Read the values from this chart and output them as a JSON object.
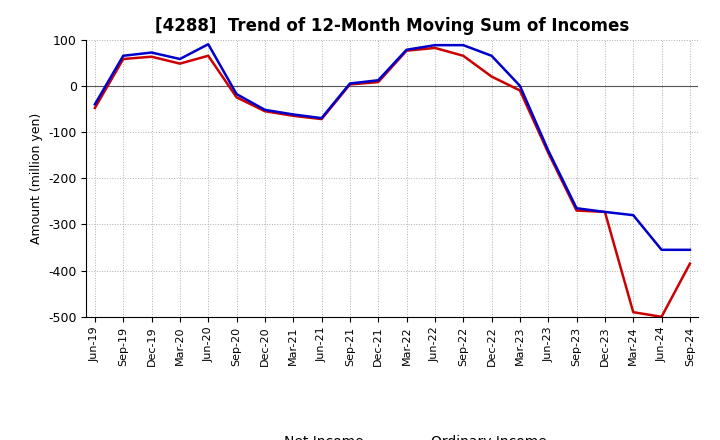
{
  "title": "[4288]  Trend of 12-Month Moving Sum of Incomes",
  "ylabel": "Amount (million yen)",
  "x_labels": [
    "Jun-19",
    "Sep-19",
    "Dec-19",
    "Mar-20",
    "Jun-20",
    "Sep-20",
    "Dec-20",
    "Mar-21",
    "Jun-21",
    "Sep-21",
    "Dec-21",
    "Mar-22",
    "Jun-22",
    "Sep-22",
    "Dec-22",
    "Mar-23",
    "Jun-23",
    "Sep-23",
    "Dec-23",
    "Mar-24",
    "Jun-24",
    "Sep-24"
  ],
  "ordinary_income": [
    -40,
    65,
    72,
    58,
    90,
    -18,
    -52,
    -62,
    -70,
    5,
    12,
    78,
    88,
    88,
    65,
    0,
    -140,
    -265,
    -273,
    -280,
    -355,
    -355
  ],
  "net_income": [
    -48,
    58,
    63,
    48,
    65,
    -25,
    -55,
    -65,
    -72,
    3,
    8,
    76,
    82,
    65,
    20,
    -10,
    -145,
    -270,
    -273,
    -490,
    -500,
    -385
  ],
  "ylim": [
    -500,
    100
  ],
  "yticks": [
    -500,
    -400,
    -300,
    -200,
    -100,
    0,
    100
  ],
  "ordinary_color": "#0000cc",
  "net_color": "#cc0000",
  "grid_color": "#b0b0b0",
  "bg_color": "#ffffff",
  "title_fontsize": 12,
  "axis_fontsize": 9,
  "legend_fontsize": 10,
  "linewidth": 1.8
}
